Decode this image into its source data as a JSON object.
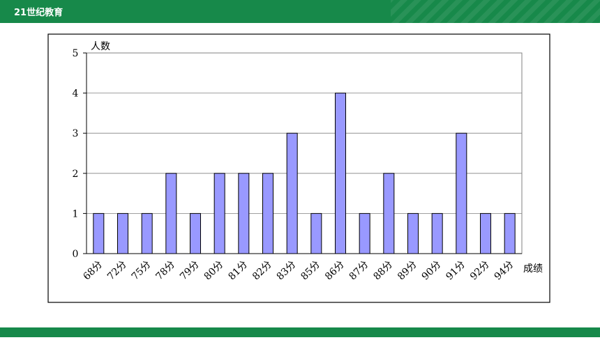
{
  "header": {
    "logo": "21世纪教育"
  },
  "chart_data": {
    "type": "bar",
    "y_label": "人数",
    "x_label": "成绩",
    "categories": [
      "68分",
      "72分",
      "75分",
      "78分",
      "79分",
      "80分",
      "81分",
      "82分",
      "83分",
      "85分",
      "86分",
      "87分",
      "88分",
      "89分",
      "90分",
      "91分",
      "92分",
      "94分"
    ],
    "values": [
      1,
      1,
      1,
      2,
      1,
      2,
      2,
      2,
      3,
      1,
      4,
      1,
      2,
      1,
      1,
      3,
      1,
      1
    ],
    "color": "#9999ff",
    "ylim": [
      0,
      5
    ],
    "yticks": [
      0,
      1,
      2,
      3,
      4,
      5
    ],
    "grid": true
  }
}
